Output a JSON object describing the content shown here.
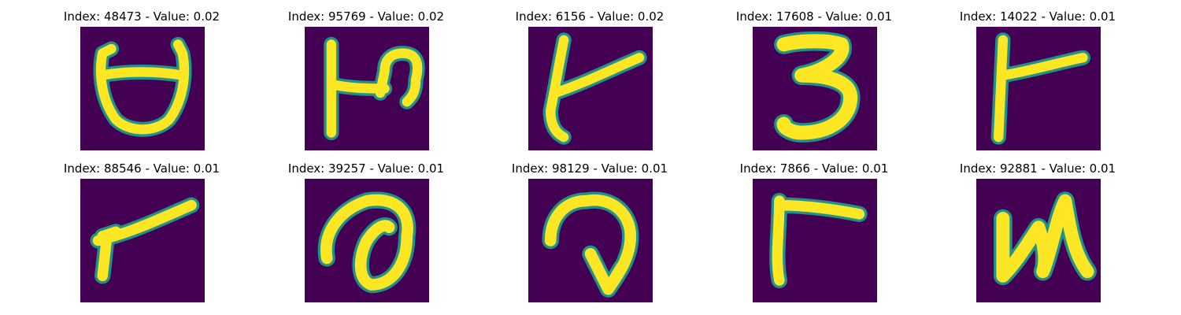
{
  "figure": {
    "background": "#ffffff",
    "panel_color": "#440154",
    "stroke_color": "#fde725",
    "edge_color": "#21918c"
  },
  "samples": [
    {
      "title": "Index: 48473 - Value: 0.02",
      "glyph": "ʊ-shape"
    },
    {
      "title": "Index: 95769 - Value: 0.02",
      "glyph": "h-like"
    },
    {
      "title": "Index: 6156 - Value: 0.02",
      "glyph": "t-like"
    },
    {
      "title": "Index: 17608 - Value: 0.01",
      "glyph": "3"
    },
    {
      "title": "Index: 14022 - Value: 0.01",
      "glyph": "r-like"
    },
    {
      "title": "Index: 88546 - Value: 0.01",
      "glyph": "r-like"
    },
    {
      "title": "Index: 39257 - Value: 0.01",
      "glyph": "loop"
    },
    {
      "title": "Index: 98129 - Value: 0.01",
      "glyph": "hook"
    },
    {
      "title": "Index: 7866 - Value: 0.01",
      "glyph": "r-like"
    },
    {
      "title": "Index: 92881 - Value: 0.01",
      "glyph": "n-like"
    }
  ]
}
